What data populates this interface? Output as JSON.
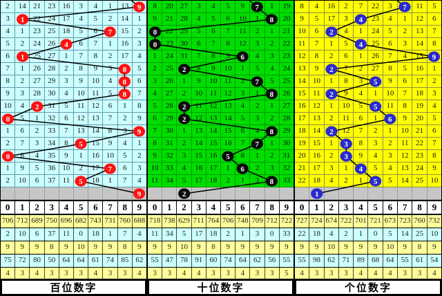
{
  "chart_data": {
    "type": "table",
    "digit_header": [
      "0",
      "1",
      "2",
      "3",
      "4",
      "5",
      "6",
      "7",
      "8",
      "9"
    ],
    "panels": [
      {
        "id": "hundreds",
        "title": "百位数字",
        "theme": {
          "cell_bg": "#CCFFFF",
          "grid": "#6699AA",
          "circle": "#FF1111",
          "line": "#000000"
        },
        "rows": [
          [
            2,
            14,
            21,
            23,
            16,
            3,
            4,
            1,
            13,
            9
          ],
          [
            3,
            1,
            22,
            24,
            17,
            4,
            5,
            2,
            14,
            1
          ],
          [
            4,
            1,
            23,
            25,
            18,
            5,
            6,
            7,
            15,
            2
          ],
          [
            5,
            2,
            24,
            26,
            4,
            6,
            7,
            1,
            16,
            3
          ],
          [
            6,
            1,
            25,
            27,
            1,
            7,
            8,
            2,
            17,
            4
          ],
          [
            7,
            1,
            26,
            28,
            2,
            8,
            9,
            3,
            8,
            5
          ],
          [
            8,
            2,
            27,
            29,
            3,
            9,
            10,
            4,
            8,
            6
          ],
          [
            9,
            3,
            28,
            30,
            4,
            10,
            11,
            5,
            8,
            7
          ],
          [
            10,
            4,
            2,
            31,
            5,
            11,
            12,
            6,
            1,
            8
          ],
          [
            0,
            5,
            1,
            32,
            6,
            12,
            13,
            7,
            2,
            9
          ],
          [
            1,
            6,
            2,
            33,
            7,
            13,
            14,
            8,
            3,
            9
          ],
          [
            2,
            7,
            3,
            34,
            8,
            5,
            15,
            9,
            4,
            1
          ],
          [
            0,
            8,
            4,
            35,
            9,
            1,
            16,
            10,
            5,
            2
          ],
          [
            1,
            9,
            5,
            36,
            10,
            2,
            17,
            7,
            6,
            3
          ],
          [
            2,
            10,
            6,
            37,
            11,
            5,
            18,
            1,
            7,
            4
          ]
        ],
        "circles": [
          9,
          1,
          7,
          4,
          1,
          8,
          8,
          8,
          2,
          0,
          9,
          5,
          0,
          7,
          5
        ],
        "forecast": 9,
        "stats": [
          [
            706,
            712,
            689,
            750,
            696,
            682,
            743,
            731,
            760,
            688
          ],
          [
            2,
            10,
            6,
            37,
            11,
            0,
            18,
            1,
            7,
            4
          ],
          [
            9,
            9,
            9,
            8,
            9,
            10,
            9,
            9,
            8,
            9
          ],
          [
            75,
            72,
            80,
            50,
            64,
            64,
            61,
            74,
            85,
            62
          ],
          [
            4,
            3,
            4,
            3,
            3,
            3,
            4,
            3,
            3,
            4
          ]
        ]
      },
      {
        "id": "tens",
        "title": "十位数字",
        "theme": {
          "cell_bg": "#00DD00",
          "grid": "#009900",
          "circle": "#0A0A0A",
          "line": "#000000"
        },
        "rows": [
          [
            8,
            20,
            27,
            3,
            4,
            5,
            9,
            7,
            1,
            19
          ],
          [
            9,
            21,
            28,
            4,
            5,
            6,
            10,
            1,
            8,
            20
          ],
          [
            0,
            22,
            29,
            5,
            6,
            7,
            11,
            2,
            1,
            21
          ],
          [
            0,
            23,
            30,
            6,
            7,
            8,
            12,
            3,
            2,
            22
          ],
          [
            1,
            24,
            31,
            7,
            8,
            9,
            6,
            4,
            3,
            23
          ],
          [
            2,
            25,
            2,
            8,
            9,
            10,
            1,
            5,
            4,
            24
          ],
          [
            3,
            26,
            1,
            9,
            10,
            11,
            2,
            7,
            5,
            25
          ],
          [
            4,
            27,
            2,
            10,
            11,
            12,
            3,
            1,
            8,
            26
          ],
          [
            5,
            28,
            2,
            11,
            12,
            13,
            4,
            2,
            1,
            27
          ],
          [
            6,
            29,
            2,
            12,
            13,
            14,
            5,
            3,
            2,
            28
          ],
          [
            7,
            30,
            1,
            13,
            14,
            15,
            6,
            4,
            8,
            29
          ],
          [
            8,
            31,
            2,
            14,
            15,
            16,
            7,
            7,
            1,
            30
          ],
          [
            9,
            32,
            3,
            15,
            16,
            5,
            8,
            1,
            2,
            31
          ],
          [
            10,
            33,
            4,
            16,
            17,
            1,
            6,
            2,
            3,
            32
          ],
          [
            11,
            34,
            5,
            17,
            18,
            2,
            1,
            3,
            8,
            33
          ]
        ],
        "circles": [
          7,
          8,
          0,
          0,
          6,
          2,
          7,
          8,
          2,
          2,
          8,
          7,
          5,
          6,
          8
        ],
        "forecast": 2,
        "stats": [
          [
            718,
            738,
            629,
            711,
            764,
            706,
            748,
            709,
            712,
            722
          ],
          [
            11,
            34,
            5,
            17,
            18,
            2,
            1,
            3,
            0,
            33
          ],
          [
            9,
            9,
            10,
            9,
            8,
            9,
            9,
            9,
            9,
            9
          ],
          [
            55,
            47,
            78,
            91,
            60,
            74,
            64,
            62,
            56,
            55
          ],
          [
            3,
            3,
            4,
            4,
            3,
            3,
            4,
            3,
            3,
            5
          ]
        ]
      },
      {
        "id": "units",
        "title": "个位数字",
        "theme": {
          "cell_bg": "#FFFF00",
          "grid": "#8F8F46",
          "circle": "#2A2ACC",
          "line": "#000000"
        },
        "rows": [
          [
            8,
            4,
            16,
            2,
            7,
            22,
            3,
            7,
            11,
            5
          ],
          [
            9,
            5,
            17,
            3,
            4,
            23,
            4,
            1,
            12,
            6
          ],
          [
            10,
            6,
            2,
            4,
            1,
            24,
            5,
            2,
            13,
            7
          ],
          [
            11,
            7,
            1,
            5,
            4,
            25,
            6,
            3,
            14,
            8
          ],
          [
            12,
            8,
            2,
            6,
            1,
            26,
            7,
            4,
            15,
            9
          ],
          [
            13,
            9,
            2,
            7,
            2,
            27,
            8,
            5,
            16,
            1
          ],
          [
            14,
            10,
            1,
            8,
            3,
            5,
            9,
            6,
            17,
            2
          ],
          [
            15,
            11,
            2,
            9,
            4,
            1,
            10,
            7,
            18,
            3
          ],
          [
            16,
            12,
            1,
            10,
            5,
            5,
            11,
            8,
            19,
            4
          ],
          [
            17,
            13,
            2,
            11,
            6,
            1,
            6,
            9,
            20,
            5
          ],
          [
            18,
            14,
            2,
            12,
            7,
            2,
            1,
            10,
            21,
            6
          ],
          [
            19,
            15,
            1,
            3,
            8,
            3,
            2,
            11,
            22,
            7
          ],
          [
            20,
            16,
            2,
            3,
            9,
            4,
            3,
            12,
            23,
            8
          ],
          [
            21,
            17,
            3,
            1,
            4,
            5,
            4,
            13,
            24,
            9
          ],
          [
            22,
            18,
            4,
            2,
            1,
            5,
            5,
            14,
            25,
            10
          ]
        ],
        "circles": [
          7,
          4,
          2,
          4,
          9,
          2,
          5,
          2,
          5,
          6,
          2,
          3,
          3,
          4,
          5
        ],
        "forecast": 1,
        "stats": [
          [
            727,
            724,
            674,
            722,
            701,
            721,
            673,
            723,
            760,
            732
          ],
          [
            22,
            18,
            4,
            2,
            1,
            0,
            5,
            14,
            25,
            10
          ],
          [
            9,
            9,
            10,
            9,
            9,
            9,
            10,
            9,
            8,
            9
          ],
          [
            55,
            98,
            62,
            71,
            89,
            68,
            64,
            55,
            61,
            54
          ],
          [
            4,
            3,
            3,
            3,
            4,
            4,
            4,
            3,
            3,
            4
          ]
        ]
      }
    ],
    "colors": {
      "stat_yellow": "#FFFF99",
      "stat_cyan": "#CCFFFF",
      "forecast_row_bg": "#C6C6C6",
      "hundreds_circle": "#FF1111",
      "tens_circle": "#0A0A0A",
      "units_circle": "#2A2ACC"
    }
  }
}
